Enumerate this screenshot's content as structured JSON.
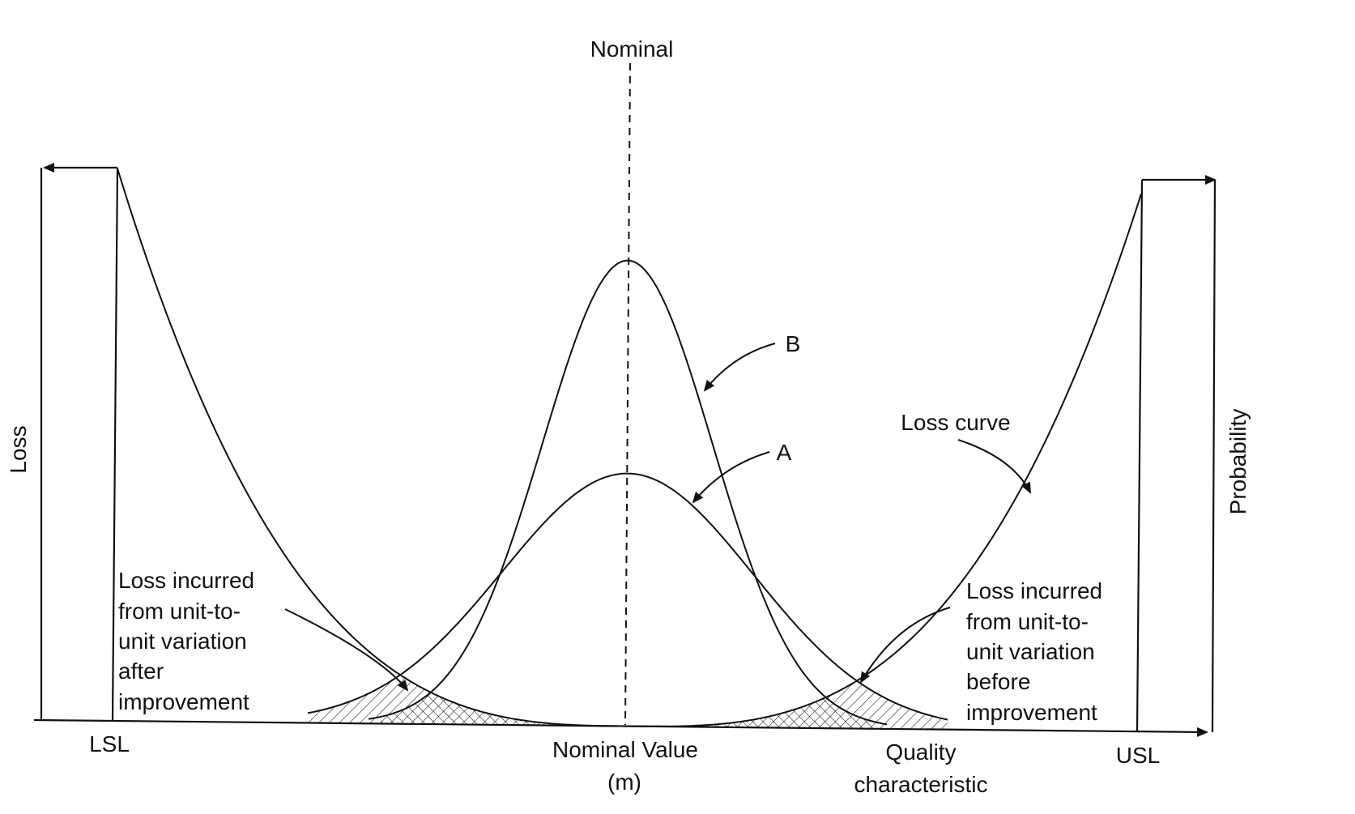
{
  "labels": {
    "nominal_top": "Nominal",
    "loss_axis": "Loss",
    "probability_axis": "Probability",
    "lsl": "LSL",
    "usl": "USL",
    "nominal_value_line1": "Nominal Value",
    "nominal_value_line2": "(m)",
    "quality_line1": "Quality",
    "quality_line2": "characteristic",
    "curve_b": "B",
    "curve_a": "A",
    "loss_curve": "Loss curve",
    "after_line1": "Loss incurred",
    "after_line2": "from unit-to-",
    "after_line3": "unit variation",
    "after_line4": "after",
    "after_line5": "improvement",
    "before_line1": "Loss incurred",
    "before_line2": "from unit-to-",
    "before_line3": "unit variation",
    "before_line4": "before",
    "before_line5": "improvement"
  },
  "colors": {
    "ink": "#111111",
    "background": "#ffffff"
  }
}
